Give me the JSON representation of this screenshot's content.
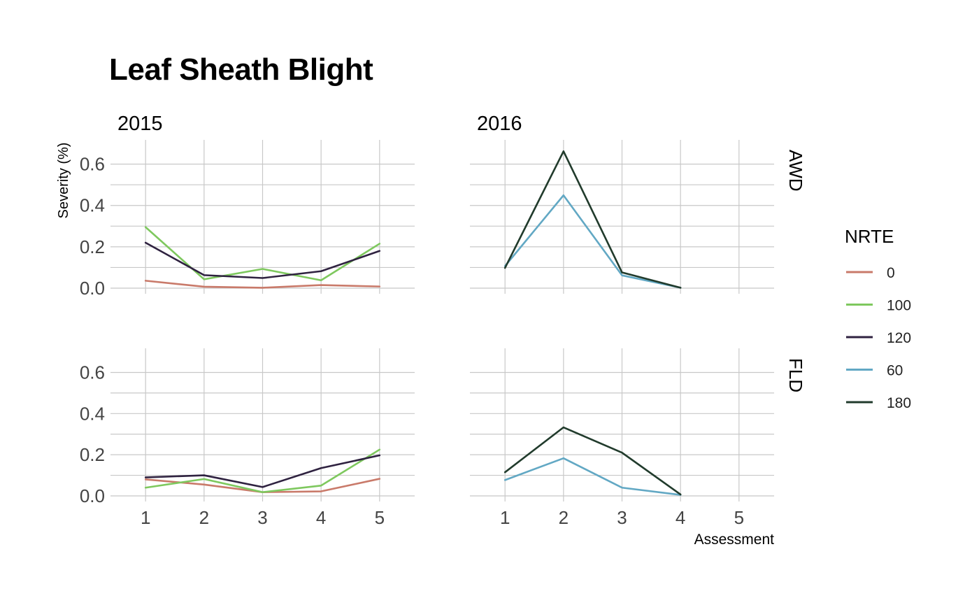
{
  "chart_data": {
    "type": "line",
    "title": "Leaf Sheath Blight",
    "xlabel": "Assessment",
    "ylabel": "Severity (%)",
    "x": [
      1,
      2,
      3,
      4,
      5
    ],
    "x_ticks": [
      "1",
      "2",
      "3",
      "4",
      "5"
    ],
    "y_ticks": [
      "0.0",
      "0.2",
      "0.4",
      "0.6"
    ],
    "ylim": [
      0,
      0.7
    ],
    "xlim": [
      0.4,
      5.6
    ],
    "grid": true,
    "legend": {
      "title": "NRTE",
      "position": "right",
      "entries": [
        {
          "label": "0",
          "color": "#c97a6a"
        },
        {
          "label": "100",
          "color": "#7ec85e"
        },
        {
          "label": "120",
          "color": "#2f2240"
        },
        {
          "label": "60",
          "color": "#62a8c4"
        },
        {
          "label": "180",
          "color": "#213b2c"
        }
      ]
    },
    "facets": [
      {
        "column": "2015",
        "row": "AWD",
        "series": [
          {
            "name": "0",
            "color": "#c97a6a",
            "values": [
              0.036,
              0.007,
              0.002,
              0.015,
              0.008
            ]
          },
          {
            "name": "100",
            "color": "#7ec85e",
            "values": [
              0.295,
              0.043,
              0.093,
              0.038,
              0.215
            ]
          },
          {
            "name": "120",
            "color": "#2f2240",
            "values": [
              0.22,
              0.063,
              0.049,
              0.082,
              0.18
            ]
          }
        ]
      },
      {
        "column": "2016",
        "row": "AWD",
        "series": [
          {
            "name": "60",
            "color": "#62a8c4",
            "values": [
              0.107,
              0.449,
              0.062,
              0.002,
              null
            ]
          },
          {
            "name": "180",
            "color": "#213b2c",
            "values": [
              0.098,
              0.662,
              0.076,
              0.002,
              null
            ]
          }
        ]
      },
      {
        "column": "2015",
        "row": "FLD",
        "series": [
          {
            "name": "0",
            "color": "#c97a6a",
            "values": [
              0.08,
              0.055,
              0.018,
              0.022,
              0.083
            ]
          },
          {
            "name": "100",
            "color": "#7ec85e",
            "values": [
              0.04,
              0.082,
              0.018,
              0.05,
              0.225
            ]
          },
          {
            "name": "120",
            "color": "#2f2240",
            "values": [
              0.09,
              0.1,
              0.043,
              0.135,
              0.197
            ]
          }
        ]
      },
      {
        "column": "2016",
        "row": "FLD",
        "series": [
          {
            "name": "60",
            "color": "#62a8c4",
            "values": [
              0.077,
              0.183,
              0.04,
              0.005,
              null
            ]
          },
          {
            "name": "180",
            "color": "#213b2c",
            "values": [
              0.115,
              0.333,
              0.21,
              0.007,
              null
            ]
          }
        ]
      }
    ]
  }
}
